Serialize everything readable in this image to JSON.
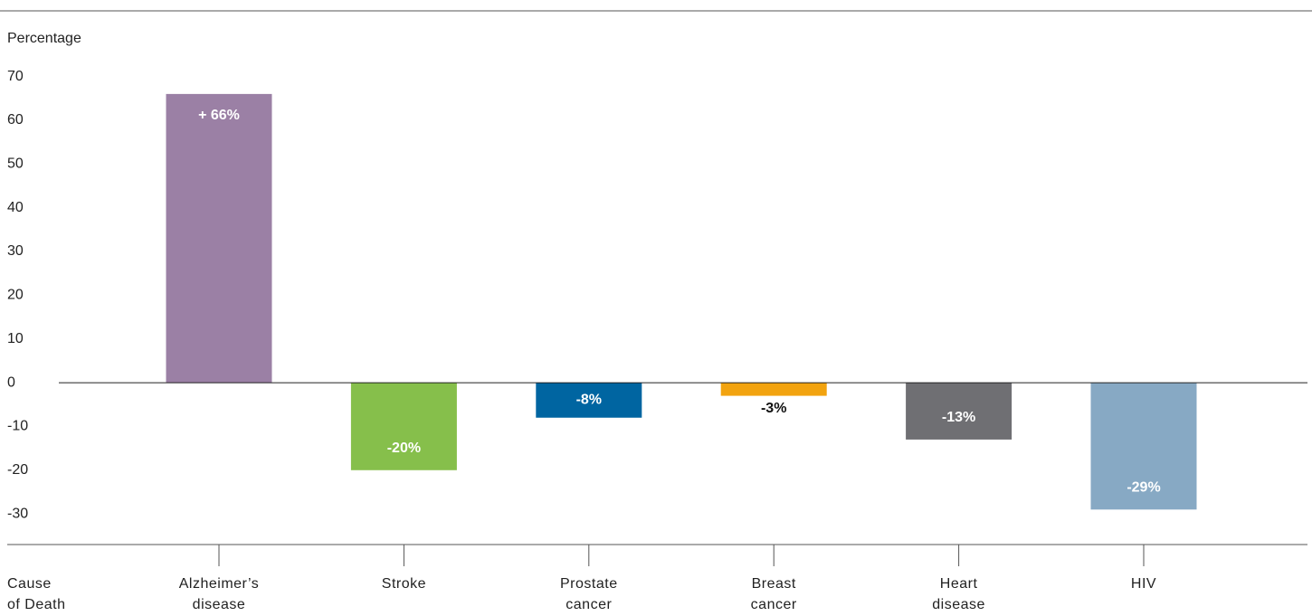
{
  "chart_data": {
    "type": "bar",
    "y_label": "Percentage",
    "x_label": "Cause\nof Death",
    "categories": [
      "Alzheimer’s\ndisease",
      "Stroke",
      "Prostate\ncancer",
      "Breast\ncancer",
      "Heart\ndisease",
      "HIV"
    ],
    "values": [
      66,
      -20,
      -8,
      -3,
      -13,
      -29
    ],
    "value_labels": [
      "+ 66%",
      "-20%",
      "-8%",
      "-3%",
      "-13%",
      "-29%"
    ],
    "colors": [
      "#9b80a5",
      "#86bf4b",
      "#0065a1",
      "#f2a30f",
      "#6f6f73",
      "#87a9c4"
    ],
    "ylim": [
      -37,
      85
    ],
    "yticks": [
      70,
      60,
      50,
      40,
      30,
      20,
      10,
      0,
      -10,
      -20,
      -30
    ]
  }
}
